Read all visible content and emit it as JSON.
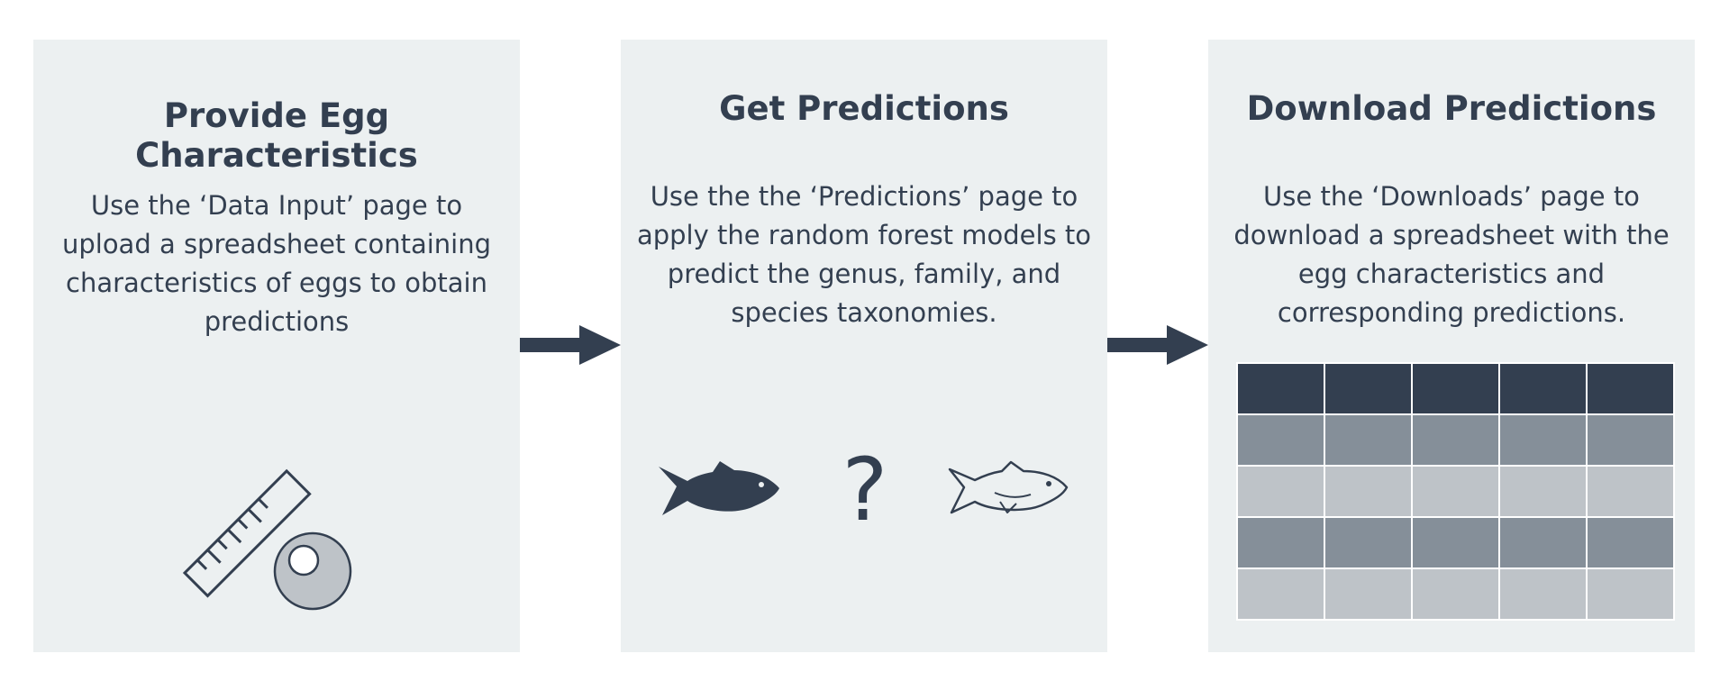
{
  "steps": [
    {
      "title": "Provide Egg Characteristics",
      "description": "Use the ‘Data Input’ page to upload a spreadsheet containing characteristics of eggs to obtain predictions",
      "icons": [
        "ruler-icon",
        "egg-icon"
      ]
    },
    {
      "title": "Get Predictions",
      "description": "Use the the ‘Predictions’ page to apply the random forest models to predict the genus, family, and species taxonomies.",
      "icons": [
        "fish-solid-icon",
        "question-mark-icon",
        "fish-outline-icon"
      ],
      "question_mark": "?"
    },
    {
      "title": "Download Predictions",
      "description": "Use the ‘Downloads’ page to download a spreadsheet with the egg characteristics and corresponding predictions.",
      "icons": [
        "spreadsheet-table-icon"
      ]
    }
  ],
  "colors": {
    "panel_bg": "#ecf0f1",
    "text": "#333f50",
    "table_header": "#333f50",
    "table_row_mid": "#858f99",
    "table_row_light": "#bec3c8"
  }
}
